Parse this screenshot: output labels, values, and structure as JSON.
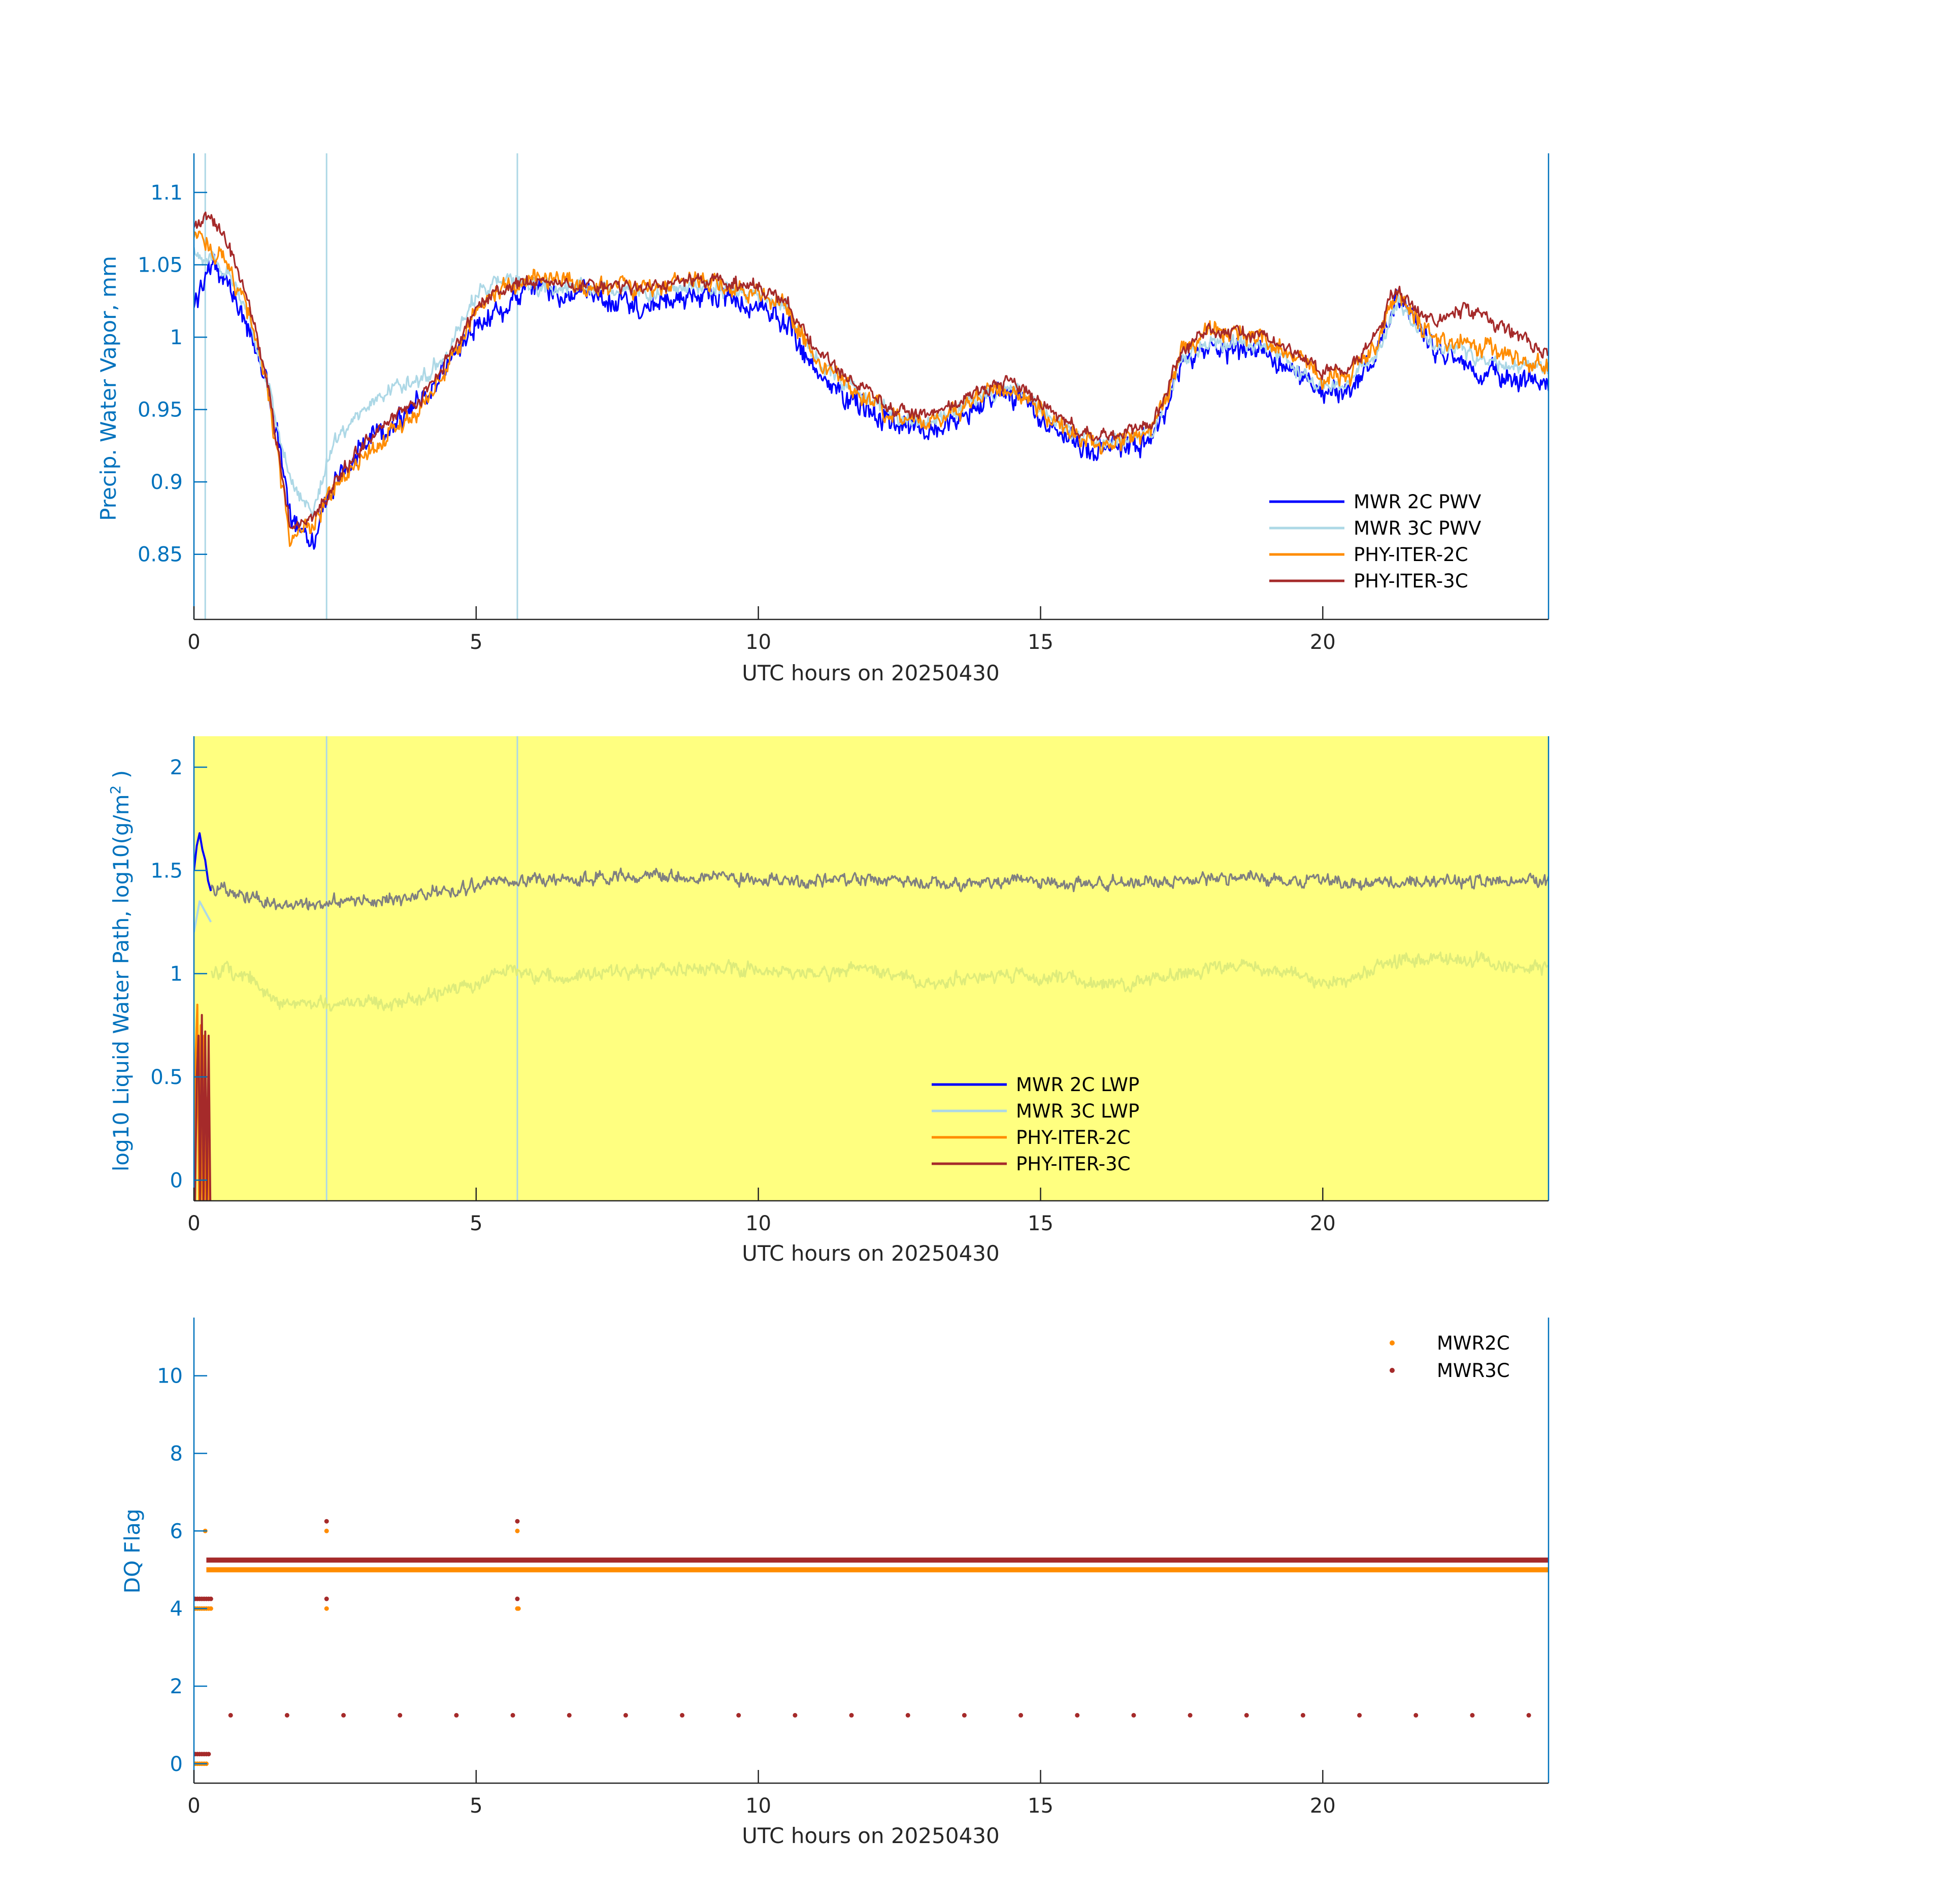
{
  "colors": {
    "mwr2c": "#0000FF",
    "mwr3c": "#ADD8E6",
    "phy2c": "#FF8C00",
    "phy3c": "#A52A2A",
    "gray": "#808080",
    "lightgreen": "#DDEB7A",
    "yellow": "#FFFF80",
    "axis_y": "#0072BD",
    "axis_x": "#262626"
  },
  "chart_data": [
    {
      "type": "line",
      "title": "",
      "xlabel": "UTC hours on 20250430",
      "ylabel": "Precip. Water Vapor, mm",
      "xlim": [
        0,
        24
      ],
      "ylim": [
        0.805,
        1.127
      ],
      "xticks": [
        0,
        5,
        10,
        15,
        20
      ],
      "xtick_labels": [
        "0",
        "5",
        "10",
        "15",
        "20"
      ],
      "yticks": [
        0.85,
        0.9,
        0.95,
        1,
        1.05,
        1.1
      ],
      "ytick_labels": [
        "0.85",
        "0.9",
        "0.95",
        "1",
        "1.05",
        "1.1"
      ],
      "legend_position": "bottom-right",
      "vertical_lines_x": [
        0.2,
        2.35,
        5.73
      ],
      "anchors_x": [
        0,
        0.25,
        0.6,
        1.0,
        1.3,
        1.7,
        2.1,
        2.5,
        3.0,
        3.5,
        4.0,
        4.5,
        5.0,
        5.5,
        6.0,
        6.5,
        7.0,
        8.0,
        9.0,
        10.0,
        10.5,
        11.0,
        11.5,
        12.0,
        12.5,
        13.0,
        13.5,
        14.0,
        14.5,
        15.0,
        15.5,
        16.0,
        16.5,
        17.0,
        17.5,
        18.0,
        19.0,
        20.0,
        20.5,
        21.0,
        21.3,
        21.6,
        22.0,
        22.5,
        23.0,
        23.5,
        24.0
      ],
      "series": [
        {
          "name": "MWR 2C PWV",
          "color_key": "mwr2c",
          "noise": 0.012,
          "values": [
            1.02,
            1.05,
            1.04,
            1.0,
            0.97,
            0.88,
            0.86,
            0.9,
            0.925,
            0.94,
            0.955,
            0.98,
            1.01,
            1.02,
            1.035,
            1.03,
            1.03,
            1.02,
            1.03,
            1.02,
            1.01,
            0.975,
            0.96,
            0.95,
            0.94,
            0.935,
            0.945,
            0.955,
            0.96,
            0.945,
            0.93,
            0.92,
            0.925,
            0.93,
            0.98,
            0.99,
            0.99,
            0.96,
            0.965,
            0.99,
            1.03,
            1.015,
            0.99,
            0.98,
            0.975,
            0.97,
            0.97
          ]
        },
        {
          "name": "MWR 3C PWV",
          "color_key": "mwr3c",
          "noise": 0.008,
          "values": [
            1.06,
            1.055,
            1.045,
            1.01,
            0.97,
            0.9,
            0.88,
            0.93,
            0.95,
            0.965,
            0.97,
            0.99,
            1.03,
            1.04,
            1.035,
            1.035,
            1.035,
            1.03,
            1.035,
            1.03,
            1.02,
            0.985,
            0.97,
            0.955,
            0.945,
            0.94,
            0.95,
            0.96,
            0.965,
            0.95,
            0.935,
            0.925,
            0.93,
            0.935,
            0.985,
            0.995,
            0.995,
            0.965,
            0.97,
            0.99,
            1.025,
            1.01,
            0.995,
            0.99,
            0.985,
            0.98,
            0.98
          ]
        },
        {
          "name": "PHY-ITER-2C",
          "color_key": "phy2c",
          "noise": 0.01,
          "values": [
            1.07,
            1.065,
            1.05,
            1.015,
            0.965,
            0.86,
            0.87,
            0.895,
            0.915,
            0.935,
            0.95,
            0.98,
            1.02,
            1.035,
            1.04,
            1.04,
            1.035,
            1.035,
            1.04,
            1.03,
            1.02,
            0.985,
            0.97,
            0.955,
            0.945,
            0.94,
            0.95,
            0.96,
            0.965,
            0.95,
            0.935,
            0.925,
            0.93,
            0.935,
            0.99,
            1.005,
            1.0,
            0.97,
            0.975,
            1.0,
            1.03,
            1.015,
            1.0,
            0.995,
            0.99,
            0.985,
            0.98
          ]
        },
        {
          "name": "PHY-ITER-3C",
          "color_key": "phy3c",
          "noise": 0.007,
          "values": [
            1.075,
            1.085,
            1.065,
            1.02,
            0.97,
            0.87,
            0.875,
            0.9,
            0.925,
            0.945,
            0.955,
            0.985,
            1.02,
            1.035,
            1.04,
            1.035,
            1.035,
            1.035,
            1.04,
            1.035,
            1.025,
            0.99,
            0.975,
            0.96,
            0.95,
            0.945,
            0.955,
            0.965,
            0.97,
            0.955,
            0.94,
            0.93,
            0.935,
            0.94,
            0.99,
            1.005,
            1.0,
            0.975,
            0.98,
            1.005,
            1.035,
            1.02,
            1.01,
            1.02,
            1.01,
            1.0,
            0.99
          ]
        }
      ]
    },
    {
      "type": "line",
      "title": "",
      "xlabel": "UTC hours on 20250430",
      "ylabel": "log10 Liquid Water Path, log10(g/m",
      "ylabel_sup": "2",
      "ylabel_end": " )",
      "xlim": [
        0,
        24
      ],
      "ylim": [
        -0.1,
        2.15
      ],
      "xticks": [
        0,
        5,
        10,
        15,
        20
      ],
      "xtick_labels": [
        "0",
        "5",
        "10",
        "15",
        "20"
      ],
      "yticks": [
        0,
        0.5,
        1,
        1.5,
        2
      ],
      "ytick_labels": [
        "0",
        "0.5",
        "1",
        "1.5",
        "2"
      ],
      "background_color_key": "yellow",
      "legend_position": "bottom-center",
      "vertical_lines_x": [
        2.35,
        5.73
      ],
      "anchors_x": [
        0.3,
        1.0,
        1.5,
        2.0,
        2.5,
        3.0,
        3.5,
        4.0,
        4.5,
        5.0,
        5.5,
        6.0,
        6.5,
        7.0,
        8.0,
        9.0,
        10.0,
        11.0,
        12.0,
        12.5,
        13.0,
        13.5,
        14.0,
        14.5,
        15.0,
        15.5,
        16.0,
        16.5,
        17.0,
        17.5,
        18.0,
        18.5,
        19.0,
        19.5,
        20.0,
        20.5,
        21.0,
        22.0,
        23.0,
        24.0
      ],
      "series": [
        {
          "name": "MWR 2C LWP",
          "color_key": "mwr2c",
          "x": [
            0.0,
            0.05,
            0.1,
            0.15,
            0.2,
            0.25,
            0.3
          ],
          "values": [
            1.5,
            1.62,
            1.68,
            1.6,
            1.55,
            1.45,
            1.4
          ]
        },
        {
          "name": "MWR 3C LWP",
          "color_key": "mwr3c",
          "x": [
            0.0,
            0.1,
            0.2,
            0.3
          ],
          "values": [
            1.2,
            1.35,
            1.3,
            1.25
          ]
        },
        {
          "name": "PHY-ITER-2C",
          "color_key": "phy2c",
          "x": [
            0.0,
            0.03,
            0.06,
            0.09,
            0.12,
            0.15,
            0.18,
            0.21,
            0.24,
            0.27,
            0.3
          ],
          "values": [
            -0.1,
            0.6,
            0.85,
            -0.1,
            0.75,
            -0.1,
            0.7,
            -0.1,
            0.4,
            -0.1,
            -0.1
          ]
        },
        {
          "name": "PHY-ITER-3C",
          "color_key": "phy3c",
          "x": [
            0.02,
            0.05,
            0.08,
            0.11,
            0.14,
            0.17,
            0.2,
            0.23,
            0.26,
            0.29
          ],
          "values": [
            -0.1,
            0.5,
            0.7,
            -0.1,
            0.8,
            -0.1,
            0.72,
            -0.1,
            0.7,
            -0.1
          ]
        },
        {
          "color_key": "gray",
          "noise": 0.045,
          "values": [
            1.42,
            1.38,
            1.33,
            1.33,
            1.35,
            1.35,
            1.36,
            1.38,
            1.4,
            1.42,
            1.44,
            1.45,
            1.45,
            1.47,
            1.47,
            1.47,
            1.46,
            1.45,
            1.47,
            1.45,
            1.44,
            1.43,
            1.44,
            1.45,
            1.45,
            1.44,
            1.43,
            1.44,
            1.45,
            1.45,
            1.46,
            1.46,
            1.46,
            1.45,
            1.45,
            1.44,
            1.44,
            1.45,
            1.45,
            1.44
          ]
        },
        {
          "color_key": "lightgreen",
          "noise": 0.05,
          "values": [
            1.02,
            0.98,
            0.85,
            0.87,
            0.85,
            0.87,
            0.85,
            0.88,
            0.92,
            0.95,
            1.02,
            1.0,
            0.98,
            1.0,
            1.02,
            1.03,
            1.02,
            1.0,
            1.02,
            1.0,
            0.95,
            0.97,
            0.98,
            1.0,
            0.97,
            0.98,
            0.96,
            0.95,
            0.98,
            1.0,
            1.03,
            1.04,
            1.02,
            1.0,
            0.95,
            0.98,
            1.05,
            1.08,
            1.05,
            1.02
          ]
        }
      ]
    },
    {
      "type": "scatter",
      "title": "",
      "xlabel": "UTC hours on 20250430",
      "ylabel": "DQ Flag",
      "xlim": [
        0,
        24
      ],
      "ylim": [
        -0.5,
        11.5
      ],
      "xticks": [
        0,
        5,
        10,
        15,
        20
      ],
      "xtick_labels": [
        "0",
        "5",
        "10",
        "15",
        "20"
      ],
      "yticks": [
        0,
        2,
        4,
        6,
        8,
        10
      ],
      "ytick_labels": [
        "0",
        "2",
        "4",
        "6",
        "8",
        "10"
      ],
      "legend_position": "top-right",
      "series": [
        {
          "name": "MWR2C",
          "color_key": "phy2c",
          "band": {
            "x_start": 0.22,
            "x_end": 24.0,
            "y": 5
          },
          "points": [
            [
              0.02,
              4
            ],
            [
              0.06,
              4
            ],
            [
              0.1,
              4
            ],
            [
              0.14,
              4
            ],
            [
              0.18,
              4
            ],
            [
              0.22,
              4
            ],
            [
              0.26,
              4
            ],
            [
              0.3,
              4
            ],
            [
              0.02,
              0
            ],
            [
              0.06,
              0
            ],
            [
              0.1,
              0
            ],
            [
              0.14,
              0
            ],
            [
              0.18,
              0
            ],
            [
              0.22,
              0
            ],
            [
              0.2,
              6
            ],
            [
              2.35,
              6
            ],
            [
              2.35,
              4
            ],
            [
              5.73,
              6
            ],
            [
              5.73,
              4
            ],
            [
              5.75,
              4
            ]
          ]
        },
        {
          "name": "MWR3C",
          "color_key": "phy3c",
          "band": {
            "x_start": 0.22,
            "x_end": 24.0,
            "y": 5.25
          },
          "points": [
            [
              0.02,
              4.25
            ],
            [
              0.06,
              4.25
            ],
            [
              0.1,
              4.25
            ],
            [
              0.14,
              4.25
            ],
            [
              0.18,
              4.25
            ],
            [
              0.22,
              4.25
            ],
            [
              0.26,
              4.25
            ],
            [
              0.3,
              4.25
            ],
            [
              0.02,
              0.25
            ],
            [
              0.06,
              0.25
            ],
            [
              0.1,
              0.25
            ],
            [
              0.14,
              0.25
            ],
            [
              0.18,
              0.25
            ],
            [
              0.22,
              0.25
            ],
            [
              0.26,
              0.25
            ],
            [
              2.35,
              6.25
            ],
            [
              2.35,
              4.25
            ],
            [
              5.73,
              6.25
            ],
            [
              5.73,
              4.25
            ],
            [
              0.65,
              1.25
            ],
            [
              1.65,
              1.25
            ],
            [
              2.65,
              1.25
            ],
            [
              3.65,
              1.25
            ],
            [
              4.65,
              1.25
            ],
            [
              5.65,
              1.25
            ],
            [
              6.65,
              1.25
            ],
            [
              7.65,
              1.25
            ],
            [
              8.65,
              1.25
            ],
            [
              9.65,
              1.25
            ],
            [
              10.65,
              1.25
            ],
            [
              11.65,
              1.25
            ],
            [
              12.65,
              1.25
            ],
            [
              13.65,
              1.25
            ],
            [
              14.65,
              1.25
            ],
            [
              15.65,
              1.25
            ],
            [
              16.65,
              1.25
            ],
            [
              17.65,
              1.25
            ],
            [
              18.65,
              1.25
            ],
            [
              19.65,
              1.25
            ],
            [
              20.65,
              1.25
            ],
            [
              21.65,
              1.25
            ],
            [
              22.65,
              1.25
            ],
            [
              23.65,
              1.25
            ]
          ]
        }
      ]
    }
  ]
}
